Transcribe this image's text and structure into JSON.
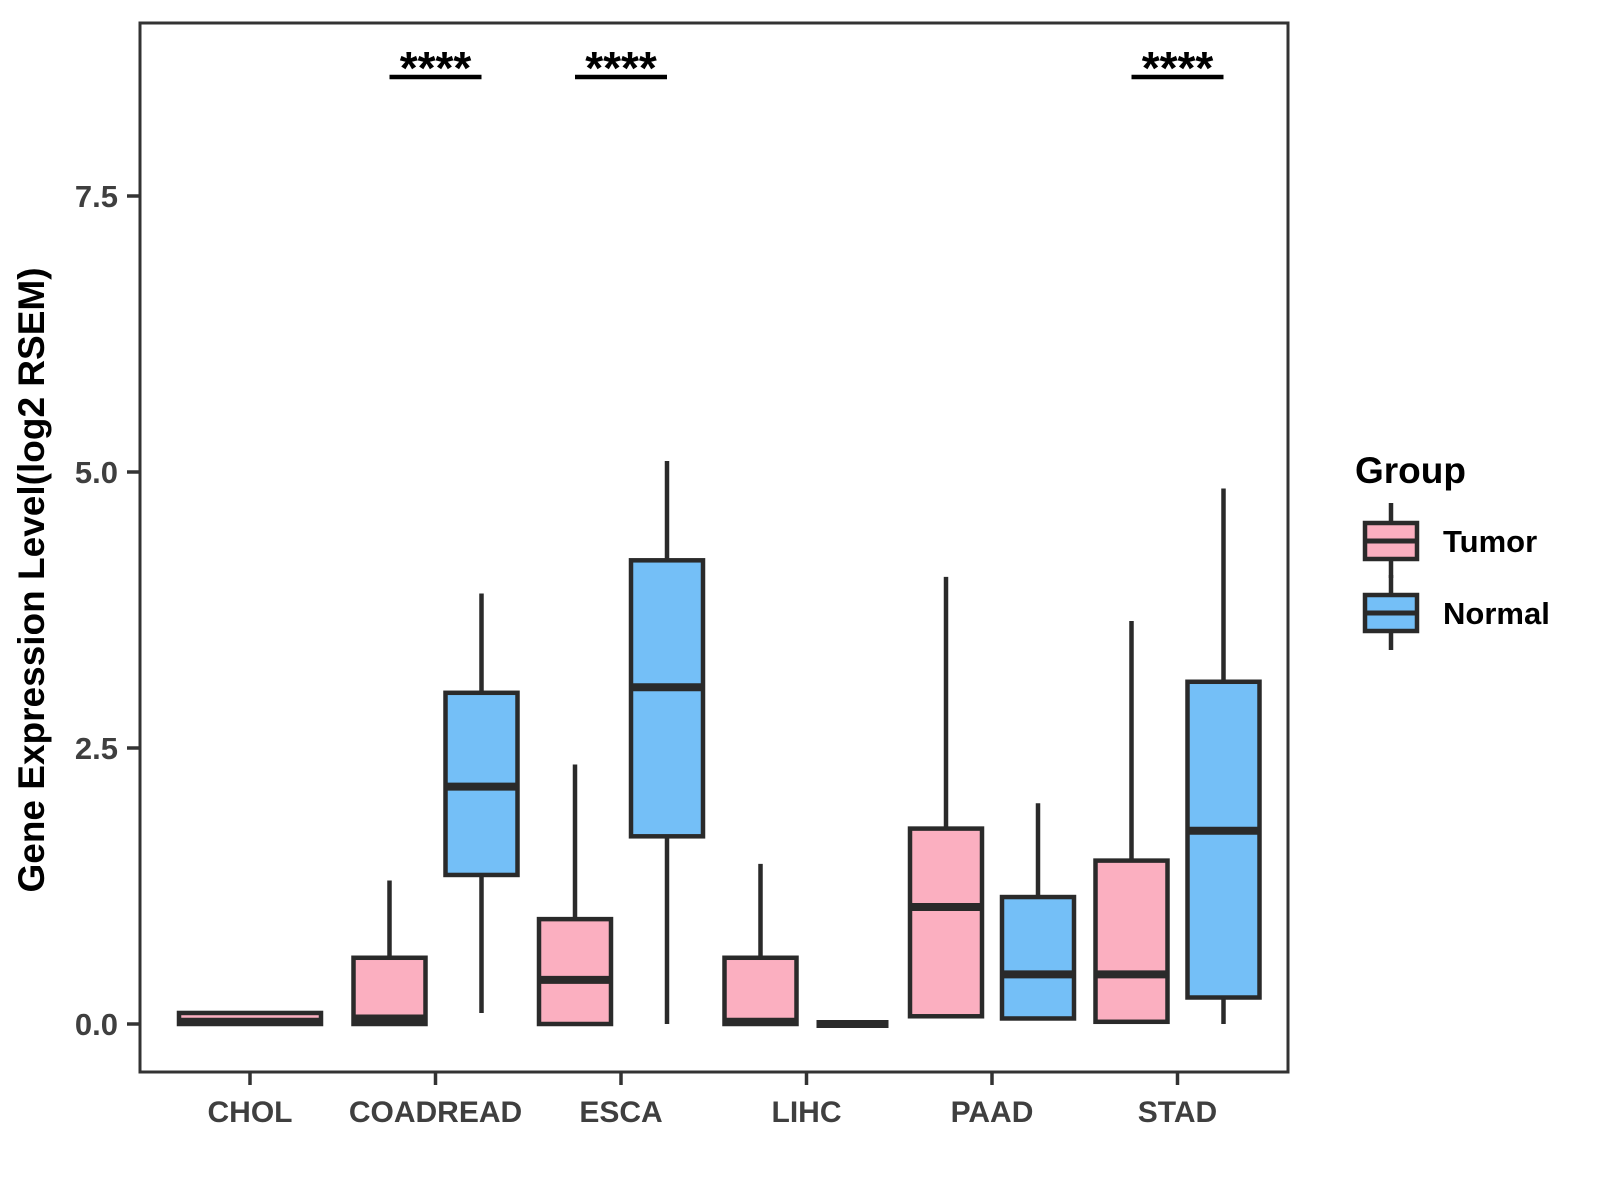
{
  "chart_data": {
    "type": "grouped_boxplot",
    "title": "",
    "xlabel": "",
    "ylabel": "Gene Expression Level(log2 RSEM)",
    "yticks": [
      "0.0",
      "2.5",
      "5.0",
      "7.5"
    ],
    "ytick_values": [
      0.0,
      2.5,
      5.0,
      7.5
    ],
    "ylim": [
      -0.45,
      9.07
    ],
    "grid": "off",
    "categories": [
      "CHOL",
      "COADREAD",
      "ESCA",
      "LIHC",
      "PAAD",
      "STAD"
    ],
    "groups": [
      {
        "name": "Tumor",
        "color": "#FBAFC0"
      },
      {
        "name": "Normal",
        "color": "#74BFF7"
      }
    ],
    "box_border_color": "#2A2A2A",
    "axis_color": "#333333",
    "tick_label_color": "#3F3F3F",
    "boxes": [
      {
        "category": "CHOL",
        "group": "Tumor",
        "whisker_low": 0,
        "q1": 0,
        "median": 0.02,
        "q3": 0.1,
        "whisker_high": 0.1,
        "wide": true
      },
      {
        "category": "COADREAD",
        "group": "Tumor",
        "whisker_low": 0,
        "q1": 0,
        "median": 0.05,
        "q3": 0.6,
        "whisker_high": 1.3
      },
      {
        "category": "COADREAD",
        "group": "Normal",
        "whisker_low": 0.1,
        "q1": 1.35,
        "median": 2.15,
        "q3": 3.0,
        "whisker_high": 3.9
      },
      {
        "category": "ESCA",
        "group": "Tumor",
        "whisker_low": 0,
        "q1": 0,
        "median": 0.4,
        "q3": 0.95,
        "whisker_high": 2.35
      },
      {
        "category": "ESCA",
        "group": "Normal",
        "whisker_low": 0,
        "q1": 1.7,
        "median": 3.05,
        "q3": 4.2,
        "whisker_high": 5.1
      },
      {
        "category": "LIHC",
        "group": "Tumor",
        "whisker_low": 0,
        "q1": 0,
        "median": 0.02,
        "q3": 0.6,
        "whisker_high": 1.45
      },
      {
        "category": "LIHC",
        "group": "Normal",
        "whisker_low": 0,
        "q1": 0,
        "median": 0.0,
        "q3": 0,
        "whisker_high": 0
      },
      {
        "category": "PAAD",
        "group": "Tumor",
        "whisker_low": 0.07,
        "q1": 0.07,
        "median": 1.06,
        "q3": 1.77,
        "whisker_high": 4.05
      },
      {
        "category": "PAAD",
        "group": "Normal",
        "whisker_low": 0.05,
        "q1": 0.05,
        "median": 0.45,
        "q3": 1.15,
        "whisker_high": 2.0
      },
      {
        "category": "STAD",
        "group": "Tumor",
        "whisker_low": 0,
        "q1": 0.02,
        "median": 0.45,
        "q3": 1.48,
        "whisker_high": 3.65
      },
      {
        "category": "STAD",
        "group": "Normal",
        "whisker_low": 0,
        "q1": 0.24,
        "median": 1.75,
        "q3": 3.1,
        "whisker_high": 4.85
      }
    ],
    "significance": [
      {
        "category": "COADREAD",
        "label": "****"
      },
      {
        "category": "ESCA",
        "label": "****"
      },
      {
        "category": "STAD",
        "label": "****"
      }
    ],
    "legend": {
      "title": "Group",
      "position": "right",
      "entries": [
        {
          "label": "Tumor",
          "color": "#FBAFC0"
        },
        {
          "label": "Normal",
          "color": "#74BFF7"
        }
      ]
    }
  }
}
